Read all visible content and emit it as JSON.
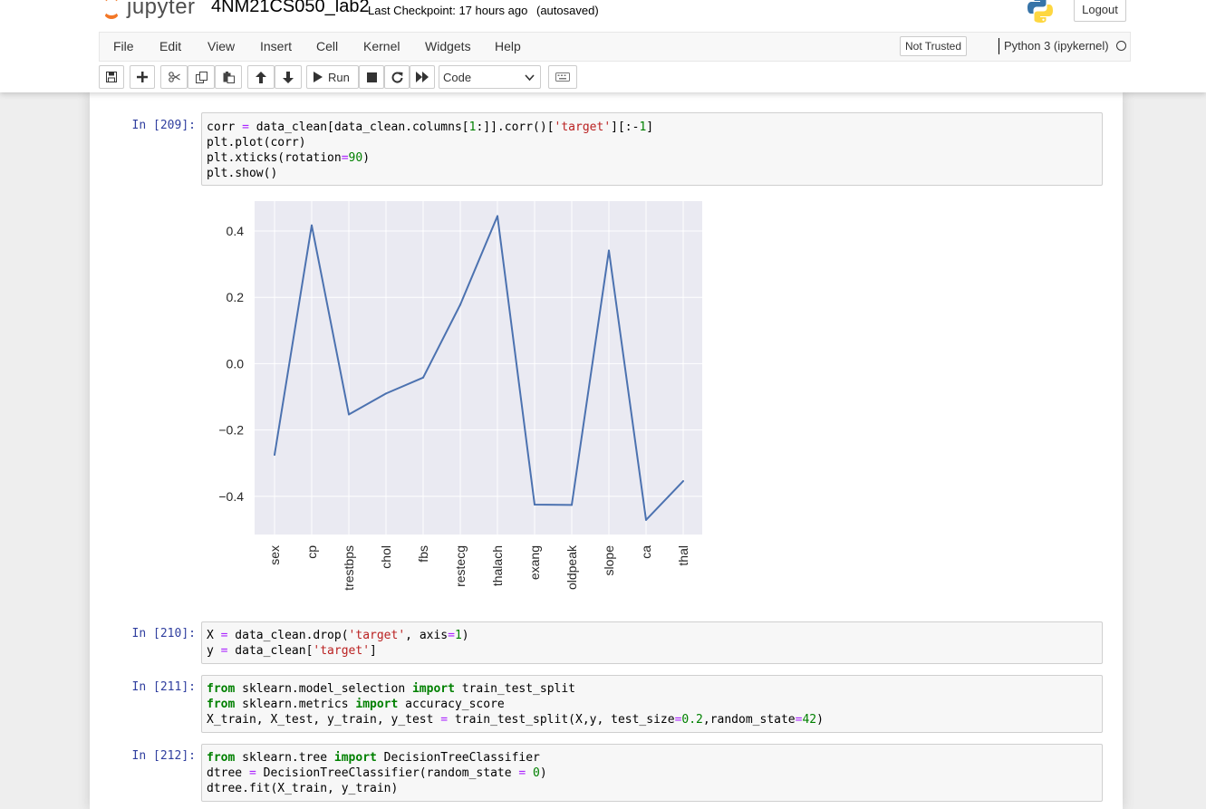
{
  "header": {
    "logo_text": "jupyter",
    "notebook_name": "4NM21CS050_lab2",
    "checkpoint": "Last Checkpoint: 17 hours ago",
    "autosave": "(autosaved)",
    "logout_label": "Logout"
  },
  "menubar": {
    "items": [
      "File",
      "Edit",
      "View",
      "Insert",
      "Cell",
      "Kernel",
      "Widgets",
      "Help"
    ],
    "trust": "Not Trusted",
    "kernel": "Python 3 (ipykernel)"
  },
  "toolbar": {
    "run_label": "Run",
    "cell_type": "Code",
    "icons": [
      "save-icon",
      "plus-icon",
      "scissors-icon",
      "copy-icon",
      "paste-icon",
      "arrow-up-icon",
      "arrow-down-icon",
      "play-icon",
      "stop-icon",
      "restart-icon",
      "fast-forward-icon",
      "keyboard-icon"
    ]
  },
  "cells": [
    {
      "prompt": "In [209]:",
      "lines": [
        "corr = data_clean[data_clean.columns[1:]].corr()['target'][:-1]",
        "plt.plot(corr)",
        "plt.xticks(rotation=90)",
        "plt.show()"
      ]
    },
    {
      "prompt": "In [210]:",
      "lines": [
        "X = data_clean.drop('target', axis=1)",
        "y = data_clean['target']"
      ]
    },
    {
      "prompt": "In [211]:",
      "lines": [
        "from sklearn.model_selection import train_test_split",
        "from sklearn.metrics import accuracy_score",
        "X_train, X_test, y_train, y_test = train_test_split(X,y, test_size=0.2,random_state=42)"
      ]
    },
    {
      "prompt": "In [212]:",
      "lines": [
        "from sklearn.tree import DecisionTreeClassifier",
        "dtree = DecisionTreeClassifier(random_state = 0)",
        "dtree.fit(X_train, y_train)"
      ]
    }
  ],
  "chart_data": {
    "type": "line",
    "categories": [
      "sex",
      "cp",
      "trestbps",
      "chol",
      "fbs",
      "restecg",
      "thalach",
      "exang",
      "oldpeak",
      "slope",
      "ca",
      "thal"
    ],
    "values": [
      -0.275,
      0.417,
      -0.153,
      -0.09,
      -0.042,
      0.178,
      0.445,
      -0.425,
      -0.426,
      0.341,
      -0.471,
      -0.354
    ],
    "yticks": [
      "0.4",
      "0.2",
      "0.0",
      "−0.2",
      "−0.4"
    ],
    "ytick_values": [
      0.4,
      0.2,
      0.0,
      -0.2,
      -0.4
    ],
    "ylim": [
      -0.515,
      0.49
    ],
    "grid": true,
    "line_color": "#4c72b0",
    "background": "#eaeaf2"
  }
}
